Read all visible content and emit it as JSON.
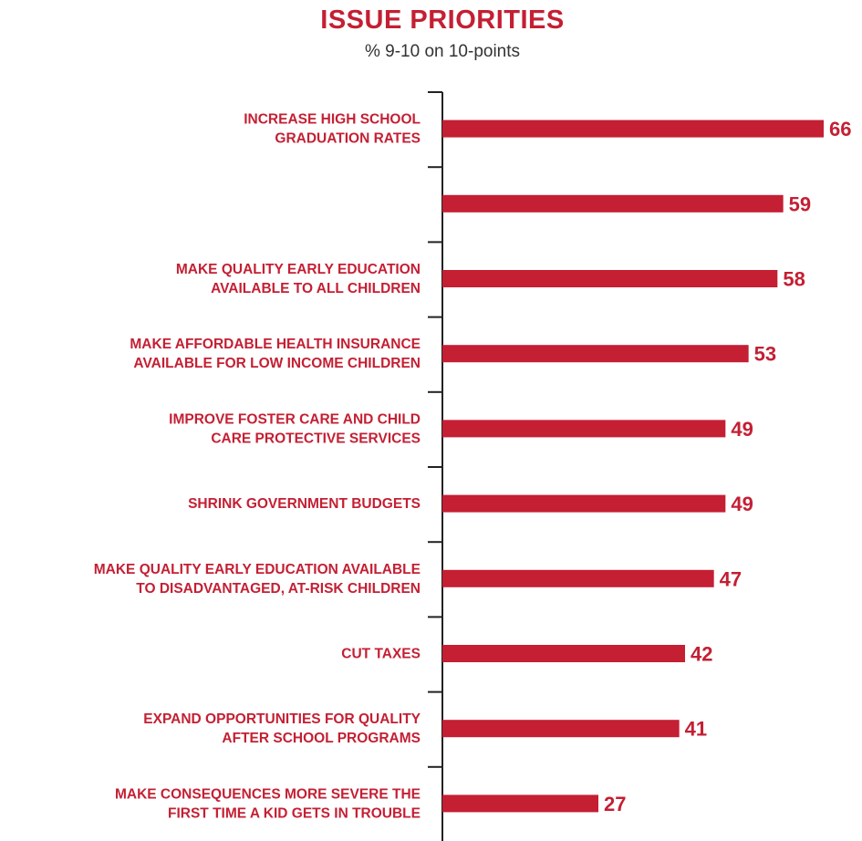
{
  "chart_data": {
    "type": "bar",
    "orientation": "horizontal",
    "title": "ISSUE PRIORITIES",
    "subtitle": "% 9-10 on 10-points",
    "categories": [
      [
        "INCREASE HIGH SCHOOL",
        "GRADUATION RATES"
      ],
      [],
      [
        "MAKE QUALITY EARLY EDUCATION",
        "AVAILABLE TO ALL CHILDREN"
      ],
      [
        "MAKE AFFORDABLE HEALTH INSURANCE",
        "AVAILABLE FOR LOW INCOME CHILDREN"
      ],
      [
        "IMPROVE FOSTER CARE AND CHILD",
        "CARE PROTECTIVE SERVICES"
      ],
      [
        "SHRINK  GOVERNMENT BUDGETS"
      ],
      [
        "MAKE QUALITY EARLY EDUCATION AVAILABLE",
        "TO DISADVANTAGED, AT-RISK CHILDREN"
      ],
      [
        "CUT TAXES"
      ],
      [
        "EXPAND OPPORTUNITIES FOR QUALITY",
        "AFTER SCHOOL PROGRAMS"
      ],
      [
        "MAKE CONSEQUENCES MORE SEVERE THE",
        "FIRST TIME A KID GETS IN TROUBLE"
      ]
    ],
    "values": [
      66,
      59,
      58,
      53,
      49,
      49,
      47,
      42,
      41,
      27
    ],
    "xlim": [
      0,
      100
    ],
    "grid": false,
    "legend": "none",
    "bar_color": "#c41f33"
  }
}
